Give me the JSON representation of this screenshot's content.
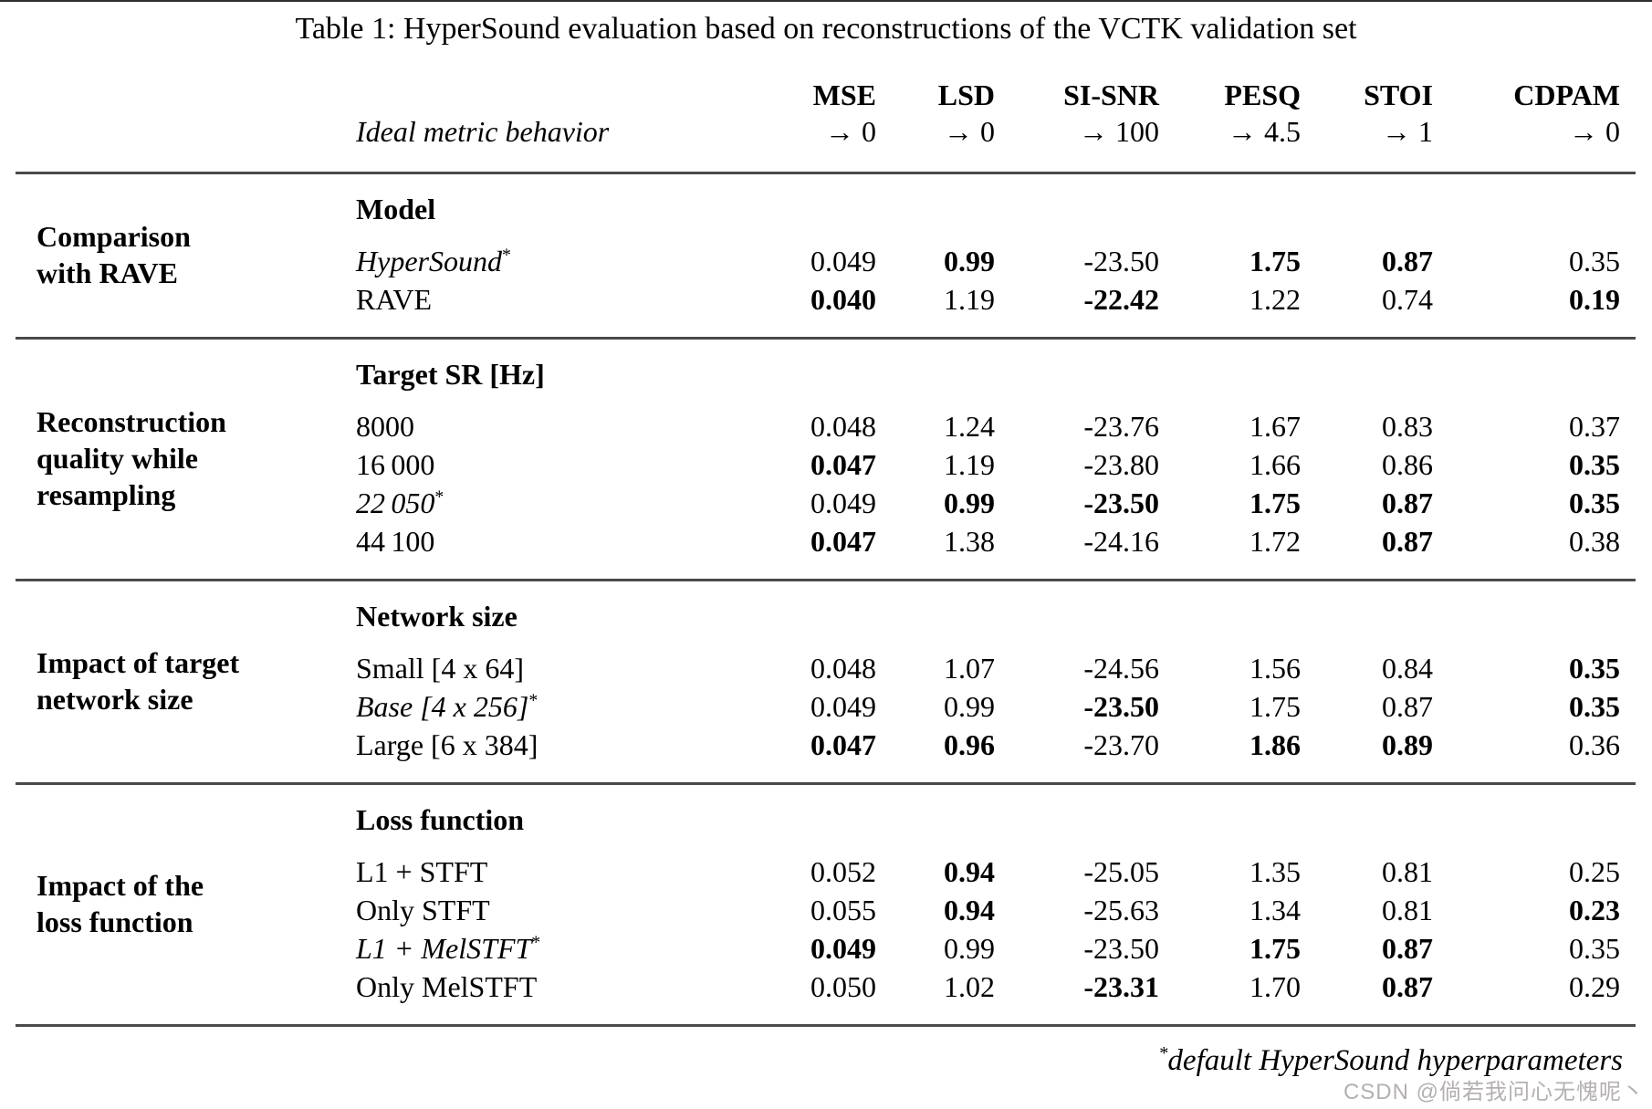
{
  "title": "Table 1: HyperSound evaluation based on reconstructions of the VCTK validation set",
  "header": {
    "ideal_label": "Ideal metric behavior",
    "metrics": [
      {
        "name": "MSE",
        "ideal": "→ 0"
      },
      {
        "name": "LSD",
        "ideal": "→ 0"
      },
      {
        "name": "SI-SNR",
        "ideal": "→ 100"
      },
      {
        "name": "PESQ",
        "ideal": "→ 4.5"
      },
      {
        "name": "STOI",
        "ideal": "→ 1"
      },
      {
        "name": "CDPAM",
        "ideal": "→ 0"
      }
    ]
  },
  "sections": [
    {
      "group": "Comparison\nwith RAVE",
      "subheader": "Model",
      "rows": [
        {
          "label": "HyperSound",
          "italic": true,
          "sup": "*",
          "values": [
            "0.049",
            "0.99",
            "-23.50",
            "1.75",
            "0.87",
            "0.35"
          ],
          "bold": [
            false,
            true,
            false,
            true,
            true,
            false
          ]
        },
        {
          "label": "RAVE",
          "italic": false,
          "sup": "",
          "values": [
            "0.040",
            "1.19",
            "-22.42",
            "1.22",
            "0.74",
            "0.19"
          ],
          "bold": [
            true,
            false,
            true,
            false,
            false,
            true
          ]
        }
      ]
    },
    {
      "group": "Reconstruction\nquality while\nresampling",
      "subheader": "Target SR [Hz]",
      "rows": [
        {
          "label": "8000",
          "italic": false,
          "sup": "",
          "values": [
            "0.048",
            "1.24",
            "-23.76",
            "1.67",
            "0.83",
            "0.37"
          ],
          "bold": [
            false,
            false,
            false,
            false,
            false,
            false
          ]
        },
        {
          "label": "16 000",
          "italic": false,
          "sup": "",
          "values": [
            "0.047",
            "1.19",
            "-23.80",
            "1.66",
            "0.86",
            "0.35"
          ],
          "bold": [
            true,
            false,
            false,
            false,
            false,
            true
          ]
        },
        {
          "label": "22 050",
          "italic": true,
          "sup": "*",
          "values": [
            "0.049",
            "0.99",
            "-23.50",
            "1.75",
            "0.87",
            "0.35"
          ],
          "bold": [
            false,
            true,
            true,
            true,
            true,
            true
          ]
        },
        {
          "label": "44 100",
          "italic": false,
          "sup": "",
          "values": [
            "0.047",
            "1.38",
            "-24.16",
            "1.72",
            "0.87",
            "0.38"
          ],
          "bold": [
            true,
            false,
            false,
            false,
            true,
            false
          ]
        }
      ]
    },
    {
      "group": "Impact of target\nnetwork size",
      "subheader": "Network size",
      "rows": [
        {
          "label": "Small [4 x 64]",
          "italic": false,
          "sup": "",
          "values": [
            "0.048",
            "1.07",
            "-24.56",
            "1.56",
            "0.84",
            "0.35"
          ],
          "bold": [
            false,
            false,
            false,
            false,
            false,
            true
          ]
        },
        {
          "label": "Base [4 x 256]",
          "italic": true,
          "sup": "*",
          "values": [
            "0.049",
            "0.99",
            "-23.50",
            "1.75",
            "0.87",
            "0.35"
          ],
          "bold": [
            false,
            false,
            true,
            false,
            false,
            true
          ]
        },
        {
          "label": "Large [6 x 384]",
          "italic": false,
          "sup": "",
          "values": [
            "0.047",
            "0.96",
            "-23.70",
            "1.86",
            "0.89",
            "0.36"
          ],
          "bold": [
            true,
            true,
            false,
            true,
            true,
            false
          ]
        }
      ]
    },
    {
      "group": "Impact of the\nloss function",
      "subheader": "Loss function",
      "rows": [
        {
          "label": "L1 + STFT",
          "italic": false,
          "sup": "",
          "values": [
            "0.052",
            "0.94",
            "-25.05",
            "1.35",
            "0.81",
            "0.25"
          ],
          "bold": [
            false,
            true,
            false,
            false,
            false,
            false
          ]
        },
        {
          "label": "Only STFT",
          "italic": false,
          "sup": "",
          "values": [
            "0.055",
            "0.94",
            "-25.63",
            "1.34",
            "0.81",
            "0.23"
          ],
          "bold": [
            false,
            true,
            false,
            false,
            false,
            true
          ]
        },
        {
          "label": "L1 + MelSTFT",
          "italic": true,
          "sup": "*",
          "values": [
            "0.049",
            "0.99",
            "-23.50",
            "1.75",
            "0.87",
            "0.35"
          ],
          "bold": [
            true,
            false,
            false,
            true,
            true,
            false
          ]
        },
        {
          "label": "Only MelSTFT",
          "italic": false,
          "sup": "",
          "values": [
            "0.050",
            "1.02",
            "-23.31",
            "1.70",
            "0.87",
            "0.29"
          ],
          "bold": [
            false,
            false,
            true,
            false,
            true,
            false
          ]
        }
      ]
    }
  ],
  "footnote": {
    "marker": "*",
    "text": "default HyperSound hyperparameters"
  },
  "watermark": "CSDN @倘若我问心无愧呢丶"
}
